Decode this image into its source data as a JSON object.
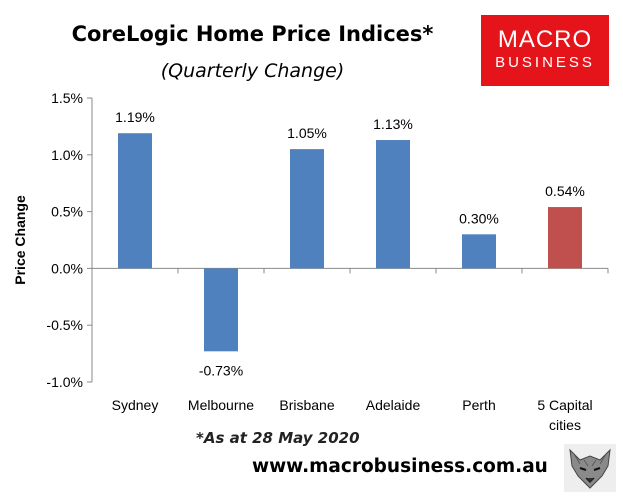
{
  "chart_data": {
    "type": "bar",
    "title": "CoreLogic Home Price Indices*",
    "subtitle": "(Quarterly Change)",
    "ylabel": "Price Change",
    "categories": [
      "Sydney",
      "Melbourne",
      "Brisbane",
      "Adelaide",
      "Perth",
      "5 Capital cities"
    ],
    "category_lines": [
      [
        "Sydney"
      ],
      [
        "Melbourne"
      ],
      [
        "Brisbane"
      ],
      [
        "Adelaide"
      ],
      [
        "Perth"
      ],
      [
        "5 Capital",
        "cities"
      ]
    ],
    "values": [
      1.19,
      -0.73,
      1.05,
      1.13,
      0.3,
      0.54
    ],
    "data_labels": [
      "1.19%",
      "-0.73%",
      "1.05%",
      "1.13%",
      "0.30%",
      "0.54%"
    ],
    "bar_colors": [
      "#4e81bd",
      "#4e81bd",
      "#4e81bd",
      "#4e81bd",
      "#4e81bd",
      "#c0504d"
    ],
    "ylim": [
      -1.0,
      1.5
    ],
    "yticks": [
      1.5,
      1.0,
      0.5,
      0.0,
      -0.5,
      -1.0
    ],
    "ytick_labels": [
      "1.5%",
      "1.0%",
      "0.5%",
      "0.0%",
      "-0.5%",
      "-1.0%"
    ],
    "grid": false,
    "legend": "none"
  },
  "note": "*As at 28 May 2020",
  "url": "www.macrobusiness.com.au",
  "logo": {
    "line1": "MACRO",
    "line2": "BUSINESS",
    "color": "#e5141b"
  },
  "wolf_icon": "wolf-head-icon"
}
